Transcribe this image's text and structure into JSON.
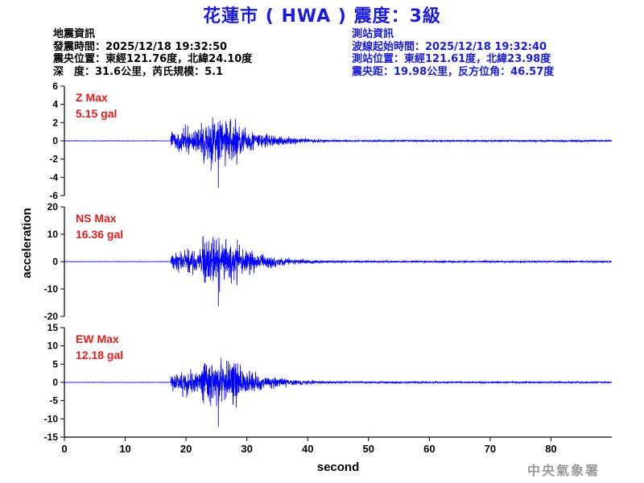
{
  "header": {
    "title": "花蓮市 ( HWA ) 震度：3級"
  },
  "earthquake_info": {
    "heading": "地震資訊",
    "origin_time": "發震時間：2025/12/18 19:32:50",
    "epicenter": "震央位置：東經121.76度，北緯24.10度",
    "depth_magnitude": "深　度：31.6公里，芮氏規模：5.1"
  },
  "station_info": {
    "heading": "測站資訊",
    "wave_start_time": "波線起始時間：2025/12/18 19:32:40",
    "station_location": "測站位置：東經121.61度，北緯23.98度",
    "distance_azimuth": "震央距：19.98公里，反方位角：46.57度"
  },
  "footer": {
    "agency": "中央氣象署"
  },
  "colors": {
    "title": "#1a1ae6",
    "trace": "#0000ff",
    "max_label": "#e61a1a",
    "axis": "#000000"
  },
  "chart_data": {
    "type": "line",
    "xlabel": "second",
    "ylabel": "acceleration",
    "xlim": [
      0,
      90
    ],
    "x_ticks": [
      "0",
      "10",
      "20",
      "30",
      "40",
      "50",
      "60",
      "70",
      "80"
    ],
    "p_arrival_s": 17.5,
    "peak_time_s": 25,
    "panels": [
      {
        "component": "Z",
        "max_label": "Z Max",
        "max_value": "5.15 gal",
        "peak": 5.15,
        "ylim": [
          -6,
          6
        ],
        "y_ticks": [
          "6",
          "4",
          "2",
          "0",
          "-2",
          "-4",
          "-6"
        ]
      },
      {
        "component": "NS",
        "max_label": "NS Max",
        "max_value": "16.36 gal",
        "peak": 16.36,
        "ylim": [
          -20,
          20
        ],
        "y_ticks": [
          "20",
          "10",
          "0",
          "-10",
          "-20"
        ]
      },
      {
        "component": "EW",
        "max_label": "EW Max",
        "max_value": "12.18 gal",
        "peak": 12.18,
        "ylim": [
          -15,
          15
        ],
        "y_ticks": [
          "15",
          "10",
          "5",
          "0",
          "-5",
          "-10",
          "-15"
        ]
      }
    ]
  }
}
